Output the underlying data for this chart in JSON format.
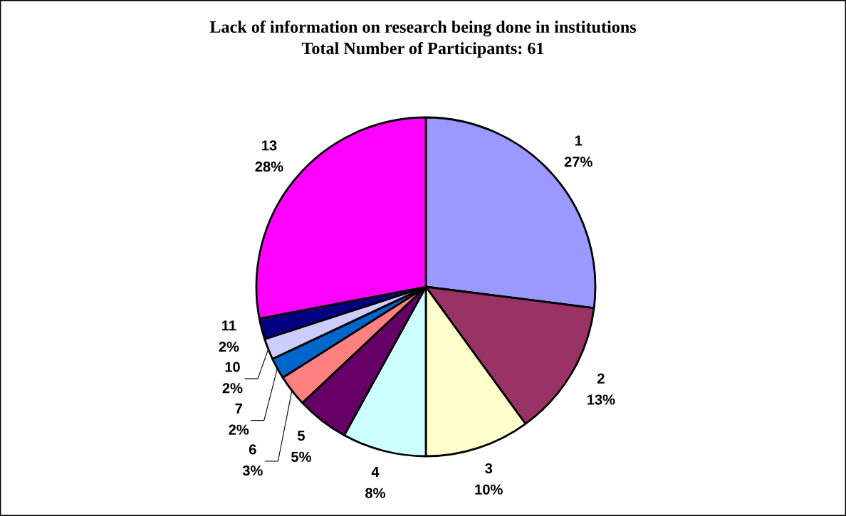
{
  "chart_data": {
    "type": "pie",
    "title": "Lack of information on research being done in institutions",
    "subtitle": "Total Number of Participants: 61",
    "categories": [
      "1",
      "2",
      "3",
      "4",
      "5",
      "6",
      "7",
      "10",
      "11",
      "13"
    ],
    "values": [
      27,
      13,
      10,
      8,
      5,
      3,
      2,
      2,
      2,
      28
    ],
    "value_labels": [
      "27%",
      "13%",
      "10%",
      "8%",
      "5%",
      "3%",
      "2%",
      "2%",
      "2%",
      "28%"
    ],
    "colors": [
      "#9999ff",
      "#993366",
      "#ffffcc",
      "#ccffff",
      "#660066",
      "#ff8080",
      "#0066cc",
      "#ccccff",
      "#000080",
      "#ff00ff"
    ],
    "legend": false
  }
}
